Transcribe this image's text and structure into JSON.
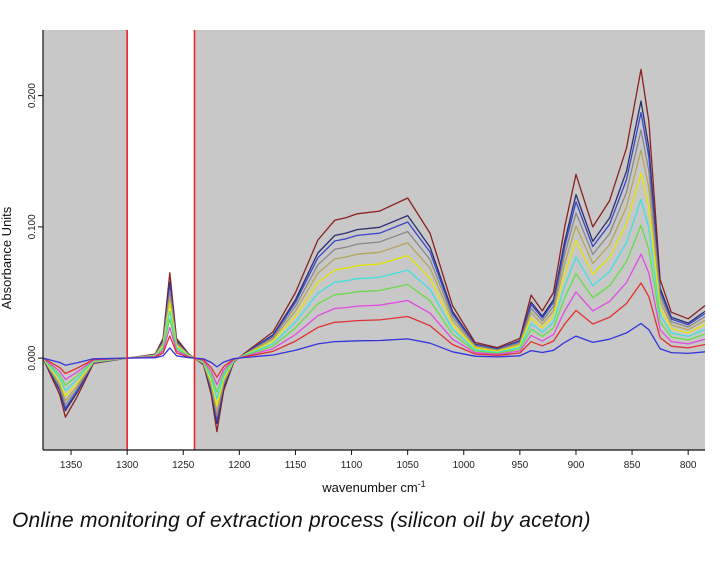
{
  "caption": "Online monitoring of extraction process (silicon oil by aceton)",
  "chart_data": {
    "type": "line",
    "title": "",
    "xlabel": "wavenumber cm",
    "xlabel_superscript": "-1",
    "ylabel": "Absorbance Units",
    "xlim": [
      1375,
      785
    ],
    "ylim": [
      -0.07,
      0.25
    ],
    "x_reversed": true,
    "xticks": [
      1350,
      1300,
      1250,
      1200,
      1150,
      1100,
      1050,
      1000,
      950,
      900,
      850,
      800
    ],
    "yticks": [
      0.0,
      0.1,
      0.2
    ],
    "ytick_labels": [
      "0.000",
      "0.100",
      "0.200"
    ],
    "background": "#c8c8c8",
    "highlight_band": {
      "x_start": 1300,
      "x_end": 1240,
      "fill": "#ffffff",
      "edge_color": "#e8262c"
    },
    "grid": false,
    "x": [
      1375,
      1360,
      1355,
      1345,
      1330,
      1300,
      1275,
      1268,
      1262,
      1256,
      1245,
      1232,
      1225,
      1220,
      1214,
      1205,
      1195,
      1170,
      1150,
      1130,
      1115,
      1105,
      1095,
      1075,
      1050,
      1030,
      1010,
      990,
      970,
      950,
      940,
      930,
      920,
      910,
      900,
      885,
      870,
      855,
      842,
      835,
      825,
      815,
      800,
      785
    ],
    "profile": [
      0.0,
      -0.028,
      -0.045,
      -0.03,
      -0.004,
      0.0,
      0.003,
      0.015,
      0.065,
      0.015,
      0.003,
      -0.005,
      -0.028,
      -0.056,
      -0.025,
      -0.003,
      0.004,
      0.02,
      0.05,
      0.09,
      0.105,
      0.107,
      0.11,
      0.112,
      0.122,
      0.095,
      0.04,
      0.012,
      0.008,
      0.015,
      0.048,
      0.036,
      0.05,
      0.1,
      0.14,
      0.1,
      0.12,
      0.16,
      0.22,
      0.18,
      0.06,
      0.035,
      0.03,
      0.04
    ],
    "series": [
      {
        "color": "#8b2020",
        "scale": 1.0
      },
      {
        "color": "#2a2f6e",
        "scale": 0.89
      },
      {
        "color": "#3b45c8",
        "scale": 0.85
      },
      {
        "color": "#888888",
        "scale": 0.79
      },
      {
        "color": "#b5a55a",
        "scale": 0.72
      },
      {
        "color": "#e6e600",
        "scale": 0.64
      },
      {
        "color": "#40e0e0",
        "scale": 0.55
      },
      {
        "color": "#66dd44",
        "scale": 0.46
      },
      {
        "color": "#e04ae0",
        "scale": 0.36
      },
      {
        "color": "#e03030",
        "scale": 0.26
      },
      {
        "color": "#3333dd",
        "scale": 0.12
      }
    ]
  }
}
